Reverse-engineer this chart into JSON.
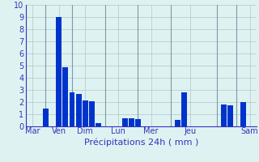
{
  "title": "",
  "xlabel": "Précipitations 24h ( mm )",
  "background_color": "#dff2f2",
  "bar_color": "#0033cc",
  "grid_color": "#b8cece",
  "text_color": "#3333bb",
  "ylim": [
    0,
    10
  ],
  "yticks": [
    0,
    1,
    2,
    3,
    4,
    5,
    6,
    7,
    8,
    9,
    10
  ],
  "day_labels": [
    "Mar",
    "Ven",
    "Dim",
    "Lun",
    "Mer",
    "Jeu",
    "Sam"
  ],
  "day_tick_positions": [
    1,
    5,
    9,
    14,
    19,
    25,
    34
  ],
  "day_vline_positions": [
    3,
    7,
    12,
    17,
    22,
    29,
    32
  ],
  "bars": [
    {
      "x": 1,
      "height": 0.0
    },
    {
      "x": 2,
      "height": 0.0
    },
    {
      "x": 3,
      "height": 1.5
    },
    {
      "x": 4,
      "height": 0.0
    },
    {
      "x": 5,
      "height": 9.0
    },
    {
      "x": 6,
      "height": 4.9
    },
    {
      "x": 7,
      "height": 2.8
    },
    {
      "x": 8,
      "height": 2.7
    },
    {
      "x": 9,
      "height": 2.15
    },
    {
      "x": 10,
      "height": 2.1
    },
    {
      "x": 11,
      "height": 0.3
    },
    {
      "x": 12,
      "height": 0.0
    },
    {
      "x": 13,
      "height": 0.0
    },
    {
      "x": 14,
      "height": 0.0
    },
    {
      "x": 15,
      "height": 0.7
    },
    {
      "x": 16,
      "height": 0.65
    },
    {
      "x": 17,
      "height": 0.6
    },
    {
      "x": 18,
      "height": 0.0
    },
    {
      "x": 19,
      "height": 0.0
    },
    {
      "x": 20,
      "height": 0.0
    },
    {
      "x": 21,
      "height": 0.0
    },
    {
      "x": 22,
      "height": 0.0
    },
    {
      "x": 23,
      "height": 0.55
    },
    {
      "x": 24,
      "height": 2.8
    },
    {
      "x": 25,
      "height": 0.0
    },
    {
      "x": 26,
      "height": 0.0
    },
    {
      "x": 27,
      "height": 0.0
    },
    {
      "x": 28,
      "height": 0.0
    },
    {
      "x": 29,
      "height": 0.0
    },
    {
      "x": 30,
      "height": 1.8
    },
    {
      "x": 31,
      "height": 1.75
    },
    {
      "x": 32,
      "height": 0.0
    },
    {
      "x": 33,
      "height": 2.0
    },
    {
      "x": 34,
      "height": 0.0
    }
  ],
  "xlim": [
    0,
    35
  ],
  "n_bars": 34
}
